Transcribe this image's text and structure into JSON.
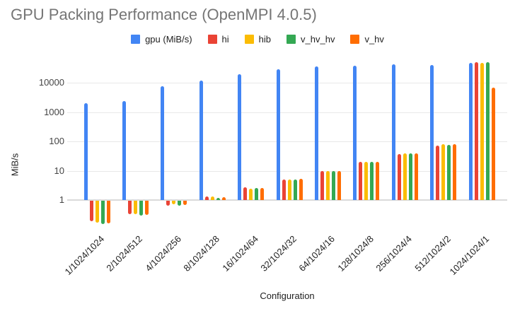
{
  "title": "GPU Packing Performance (OpenMPI 4.0.5)",
  "chart_data": {
    "type": "bar",
    "title": "GPU Packing Performance (OpenMPI 4.0.5)",
    "xlabel": "Configuration",
    "ylabel": "MiB/s",
    "y_scale": "log",
    "y_ticks": [
      1,
      10,
      100,
      1000,
      10000
    ],
    "ylim": [
      0.1,
      63000
    ],
    "grid": true,
    "legend_position": "top",
    "categories": [
      "1/1024/1024",
      "2/1024/512",
      "4/1024/256",
      "8/1024/128",
      "16/1024/64",
      "32/1024/32",
      "64/1024/16",
      "128/1024/8",
      "256/1024/4",
      "512/1024/2",
      "1024/1024/1"
    ],
    "series": [
      {
        "name": "gpu (MiB/s)",
        "color": "#4285F4",
        "values": [
          2000,
          2300,
          7500,
          11500,
          20000,
          28000,
          35000,
          38000,
          42000,
          39000,
          47000
        ]
      },
      {
        "name": "hi",
        "color": "#EA4335",
        "values": [
          0.19,
          0.33,
          0.65,
          1.3,
          2.7,
          5,
          10,
          20,
          36,
          72,
          49000
        ]
      },
      {
        "name": "hib",
        "color": "#FBBC04",
        "values": [
          0.17,
          0.33,
          0.7,
          1.3,
          2.4,
          5,
          10,
          20,
          38,
          80,
          46000
        ]
      },
      {
        "name": "v_hv_hv",
        "color": "#34A853",
        "values": [
          0.15,
          0.3,
          0.65,
          1.2,
          2.5,
          5,
          10,
          20,
          38,
          75,
          51000
        ]
      },
      {
        "name": "v_hv",
        "color": "#FF6D01",
        "values": [
          0.16,
          0.32,
          0.68,
          1.25,
          2.5,
          5.2,
          10,
          20,
          40,
          80,
          6600
        ]
      }
    ]
  }
}
